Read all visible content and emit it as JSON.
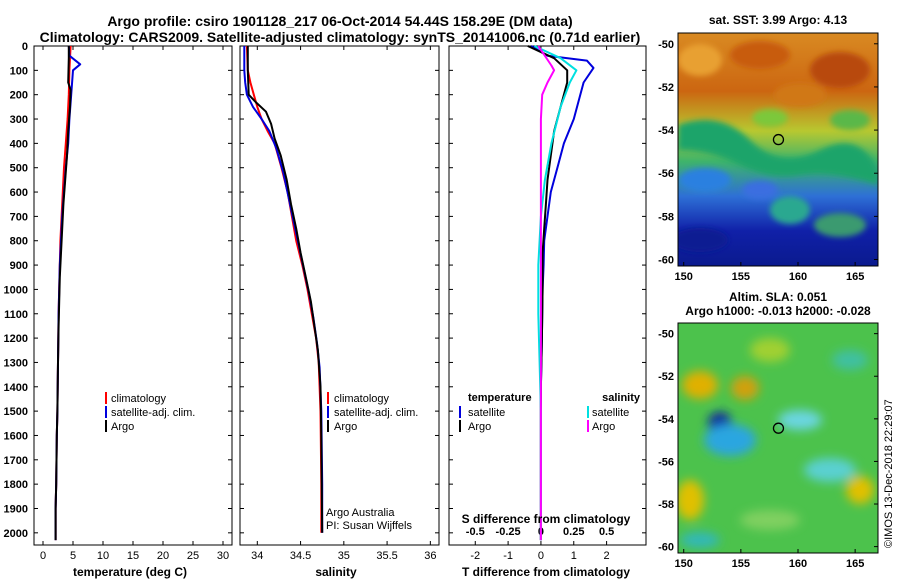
{
  "header": {
    "title_line1": "Argo profile: csiro 1901128_217 06-Oct-2014 54.44S 158.29E (DM data)",
    "title_line2": "Climatology: CARS2009. Satellite-adjusted climatology: synTS_20141006.nc (0.71d earlier)"
  },
  "colors": {
    "climatology": "#ff0000",
    "satellite": "#0000dd",
    "argo": "#000000",
    "satellite_s": "#00e0e0",
    "salinity_argo": "#ff00ff"
  },
  "legend": {
    "climatology": "climatology",
    "satellite_adj": "satellite-adj. clim.",
    "argo": "Argo",
    "diff_temperature": "temperature",
    "diff_salinity": "salinity",
    "diff_satellite": "satellite",
    "diff_argo": "Argo"
  },
  "credits": {
    "line1": "Argo Australia",
    "line2": "PI: Susan Wijffels"
  },
  "chart_data": [
    {
      "type": "line",
      "id": "temperature",
      "xlabel": "temperature (deg C)",
      "ylabel": "",
      "xlim": [
        -1.5,
        31.5
      ],
      "ylim": [
        2050,
        0
      ],
      "xticks": [
        0,
        5,
        10,
        15,
        20,
        25,
        30
      ],
      "yticks": [
        0,
        100,
        200,
        300,
        400,
        500,
        600,
        700,
        800,
        900,
        1000,
        1100,
        1200,
        1300,
        1400,
        1500,
        1600,
        1700,
        1800,
        1900,
        2000
      ],
      "series": [
        {
          "name": "climatology",
          "color": "red",
          "x": [
            4.6,
            4.5,
            4.4,
            4.3,
            4.1,
            3.8,
            3.5,
            3.3,
            3.1,
            2.9,
            2.8,
            2.7,
            2.6,
            2.5,
            2.4,
            2.3,
            2.2,
            2.1,
            2.1
          ],
          "y": [
            0,
            50,
            100,
            200,
            300,
            400,
            500,
            600,
            700,
            800,
            900,
            1000,
            1100,
            1300,
            1500,
            1600,
            1800,
            1900,
            2030
          ]
        },
        {
          "name": "satellite-adj. clim.",
          "color": "blue",
          "x": [
            4.3,
            4.4,
            6.2,
            5.0,
            4.7,
            4.4,
            4.2,
            3.8,
            3.5,
            3.2,
            3.0,
            2.8,
            2.7,
            2.6,
            2.5,
            2.4,
            2.3,
            2.2,
            2.1,
            2.1
          ],
          "y": [
            0,
            40,
            75,
            100,
            200,
            300,
            400,
            500,
            600,
            700,
            800,
            900,
            1000,
            1100,
            1300,
            1500,
            1600,
            1800,
            1900,
            2030
          ]
        },
        {
          "name": "Argo",
          "color": "black",
          "x": [
            4.3,
            4.3,
            4.2,
            4.6,
            4.5,
            4.2,
            4.0,
            3.7,
            3.4,
            3.2,
            3.0,
            2.8,
            2.7,
            2.6,
            2.5,
            2.4,
            2.3,
            2.2,
            2.1,
            2.1
          ],
          "y": [
            0,
            50,
            150,
            180,
            250,
            350,
            450,
            550,
            650,
            750,
            850,
            950,
            1050,
            1150,
            1300,
            1500,
            1600,
            1800,
            1900,
            2030
          ]
        }
      ]
    },
    {
      "type": "line",
      "id": "salinity",
      "xlabel": "salinity",
      "ylabel": "",
      "xlim": [
        33.8,
        36.1
      ],
      "ylim": [
        2050,
        0
      ],
      "xticks": [
        34,
        34.5,
        35,
        35.5,
        36
      ],
      "yticks": [
        0,
        100,
        200,
        300,
        400,
        500,
        600,
        700,
        800,
        900,
        1000,
        1100,
        1200,
        1300,
        1400,
        1500,
        1600,
        1800,
        1900,
        2000
      ],
      "series": [
        {
          "name": "climatology",
          "color": "red",
          "x": [
            33.88,
            33.89,
            33.92,
            33.96,
            34.0,
            34.05,
            34.12,
            34.2,
            34.28,
            34.35,
            34.4,
            34.45,
            34.52,
            34.58,
            34.63,
            34.68,
            34.71,
            34.73,
            34.74,
            34.74
          ],
          "y": [
            0,
            100,
            150,
            200,
            250,
            300,
            350,
            400,
            500,
            600,
            700,
            800,
            900,
            1000,
            1100,
            1200,
            1300,
            1500,
            1800,
            2000
          ]
        },
        {
          "name": "satellite-adj. clim.",
          "color": "blue",
          "x": [
            33.85,
            33.85,
            33.86,
            33.88,
            33.95,
            34.05,
            34.14,
            34.22,
            34.3,
            34.36,
            34.42,
            34.48,
            34.54,
            34.6,
            34.65,
            34.69,
            34.72,
            34.74,
            34.75,
            34.75
          ],
          "y": [
            0,
            100,
            150,
            200,
            250,
            300,
            350,
            420,
            520,
            620,
            720,
            820,
            920,
            1020,
            1120,
            1220,
            1320,
            1500,
            1800,
            2000
          ]
        },
        {
          "name": "Argo",
          "color": "black",
          "x": [
            33.89,
            33.89,
            33.9,
            33.98,
            34.1,
            34.16,
            34.2,
            34.27,
            34.34,
            34.39,
            34.45,
            34.5,
            34.56,
            34.62,
            34.66,
            34.7,
            34.73,
            34.74,
            34.75
          ],
          "y": [
            0,
            100,
            200,
            230,
            270,
            320,
            380,
            450,
            550,
            650,
            750,
            850,
            950,
            1050,
            1150,
            1250,
            1400,
            1600,
            2000
          ]
        }
      ]
    },
    {
      "type": "line",
      "id": "difference",
      "xlabel": "T difference from climatology",
      "x2label": "S difference from climatology",
      "ylabel": "",
      "xlim": [
        -2.8,
        3.2
      ],
      "ylim": [
        2050,
        0
      ],
      "xticks": [
        -2,
        -1,
        0,
        1,
        2
      ],
      "x2ticks": [
        -0.5,
        -0.25,
        0,
        0.25,
        0.5
      ],
      "x2tick_labels": [
        "-0.5",
        "-0.25",
        "0",
        "0.25",
        "0.5"
      ],
      "yticks": [
        0,
        100,
        200,
        300,
        400,
        500,
        600,
        700,
        800,
        900,
        1000,
        1100,
        1200,
        1300,
        1400,
        1500,
        1600,
        1700,
        1800,
        1900,
        2000
      ],
      "series": [
        {
          "name": "satellite",
          "group": "temperature",
          "color": "blue",
          "x": [
            -0.3,
            0.2,
            1.4,
            1.6,
            1.3,
            1.2,
            1.0,
            0.7,
            0.5,
            0.3,
            0.2,
            0.1,
            0.08,
            0.05,
            0.03,
            0.0,
            0.0,
            0.0,
            0.0
          ],
          "y": [
            0,
            40,
            60,
            90,
            150,
            200,
            300,
            400,
            500,
            600,
            700,
            800,
            900,
            1000,
            1200,
            1400,
            1600,
            1800,
            2030
          ]
        },
        {
          "name": "Argo",
          "group": "temperature",
          "color": "black",
          "x": [
            -0.4,
            0.4,
            0.8,
            0.8,
            0.6,
            0.4,
            0.3,
            0.2,
            0.15,
            0.1,
            0.05,
            0.05,
            0.03,
            0.0,
            0.0,
            0.0,
            0.0
          ],
          "y": [
            0,
            50,
            100,
            150,
            250,
            350,
            450,
            550,
            650,
            750,
            850,
            1000,
            1200,
            1400,
            1600,
            1800,
            2030
          ]
        },
        {
          "name": "satellite",
          "group": "salinity",
          "color": "cyan",
          "x": [
            -0.05,
            0.15,
            0.27,
            0.22,
            0.15,
            0.08,
            0.03,
            0.0,
            -0.02,
            -0.02,
            -0.01,
            0.0,
            0.0,
            0.0,
            0.0
          ],
          "y": [
            0,
            50,
            100,
            150,
            250,
            400,
            550,
            700,
            900,
            1100,
            1300,
            1500,
            1700,
            1900,
            2030
          ]
        },
        {
          "name": "Argo",
          "group": "salinity",
          "color": "magenta",
          "x": [
            -0.02,
            0.08,
            0.1,
            0.05,
            0.01,
            0.0,
            0.0,
            0.0,
            0.0,
            0.0,
            0.0,
            0.0,
            0.0
          ],
          "y": [
            0,
            80,
            100,
            150,
            200,
            300,
            450,
            600,
            800,
            1100,
            1400,
            1700,
            2030
          ]
        }
      ]
    },
    {
      "type": "heatmap",
      "id": "sst-map",
      "title": "sat. SST: 3.99 Argo: 4.13",
      "xlim": [
        149.5,
        167
      ],
      "ylim": [
        -60.3,
        -49.5
      ],
      "xticks": [
        150,
        155,
        160,
        165
      ],
      "yticks": [
        -50,
        -52,
        -54,
        -56,
        -58,
        -60
      ],
      "argo_position": {
        "lon": 158.29,
        "lat": -54.44
      }
    },
    {
      "type": "heatmap",
      "id": "sla-map",
      "title_line1": "Altim. SLA: 0.051",
      "title_line2": "Argo h1000: -0.013 h2000: -0.028",
      "xlim": [
        149.5,
        167
      ],
      "ylim": [
        -60.3,
        -49.5
      ],
      "xticks": [
        150,
        155,
        160,
        165
      ],
      "yticks": [
        -50,
        -52,
        -54,
        -56,
        -58,
        -60
      ],
      "argo_position": {
        "lon": 158.29,
        "lat": -54.44
      }
    }
  ],
  "watermark": "©IMOS 13-Dec-2018 22:29:07"
}
